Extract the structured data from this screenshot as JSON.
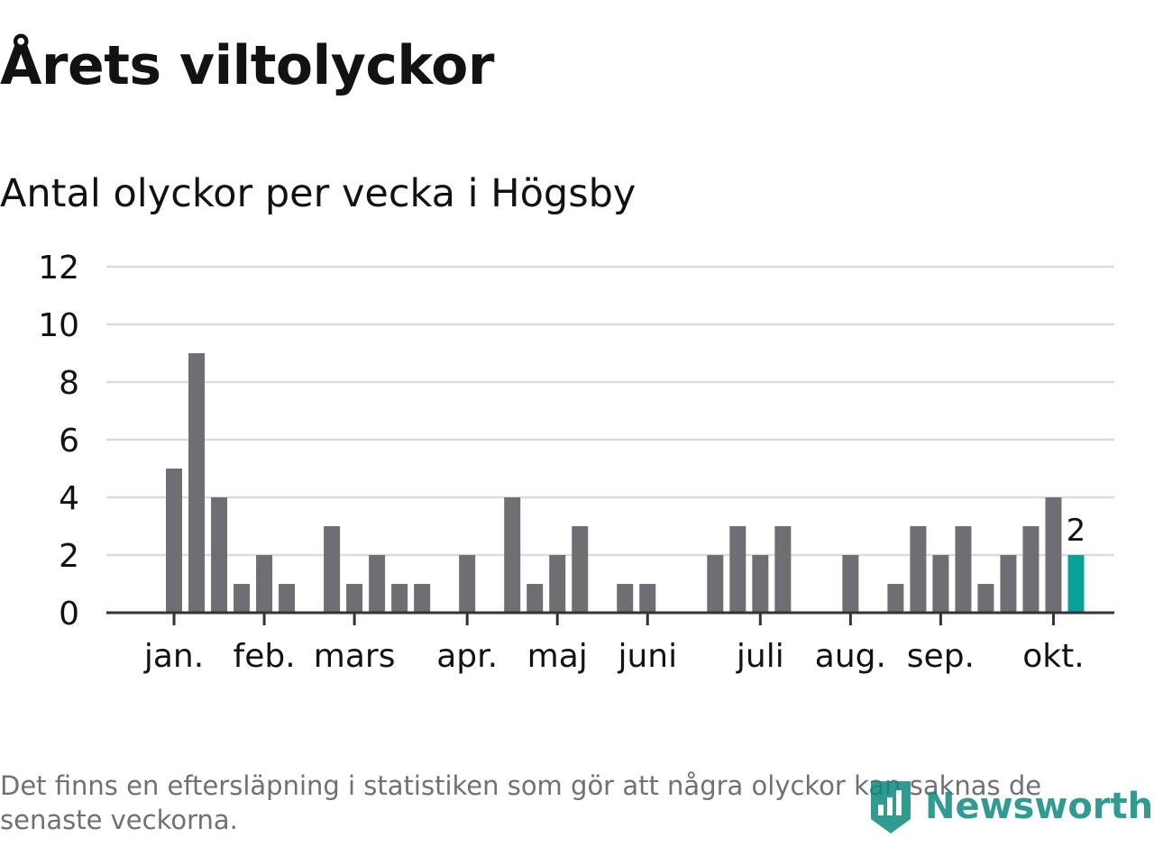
{
  "title": "Årets viltolyckor",
  "subtitle": "Antal olyckor per vecka i Högsby",
  "footnote": "Det finns en eftersläpning i statistiken som gör att några olyckor kan saknas de senaste veckorna.",
  "logo_text": "Newsworthy",
  "colors": {
    "bar": "#6e6e73",
    "highlight": "#0aa19b",
    "grid": "#dcdcdc",
    "axis": "#333333",
    "text": "#121212"
  },
  "chart_data": {
    "type": "bar",
    "title": "Antal olyckor per vecka i Högsby",
    "xlabel": "",
    "ylabel": "",
    "ylim": [
      0,
      12
    ],
    "yticks": [
      0,
      2,
      4,
      6,
      8,
      10,
      12
    ],
    "grid": true,
    "x_range": [
      -2,
      42.7
    ],
    "weeks": [
      1,
      2,
      3,
      4,
      5,
      6,
      7,
      8,
      9,
      10,
      11,
      12,
      13,
      14,
      15,
      16,
      17,
      18,
      19,
      20,
      21,
      22,
      23,
      24,
      25,
      26,
      27,
      28,
      29,
      30,
      31,
      32,
      33,
      34,
      35,
      36,
      37,
      38,
      39,
      40,
      41
    ],
    "values": [
      5,
      9,
      4,
      1,
      2,
      1,
      0,
      3,
      1,
      2,
      1,
      1,
      0,
      2,
      0,
      4,
      1,
      2,
      3,
      0,
      1,
      1,
      0,
      0,
      2,
      3,
      2,
      3,
      0,
      0,
      2,
      0,
      1,
      3,
      2,
      3,
      1,
      2,
      3,
      4,
      2
    ],
    "month_ticks": [
      {
        "label": "jan.",
        "x": 1
      },
      {
        "label": "feb.",
        "x": 5
      },
      {
        "label": "mars",
        "x": 9
      },
      {
        "label": "apr.",
        "x": 14
      },
      {
        "label": "maj",
        "x": 18
      },
      {
        "label": "juni",
        "x": 22
      },
      {
        "label": "juli",
        "x": 27
      },
      {
        "label": "aug.",
        "x": 31
      },
      {
        "label": "sep.",
        "x": 35
      },
      {
        "label": "okt.",
        "x": 40
      }
    ],
    "highlight_index": 40,
    "highlight_label": "2"
  }
}
